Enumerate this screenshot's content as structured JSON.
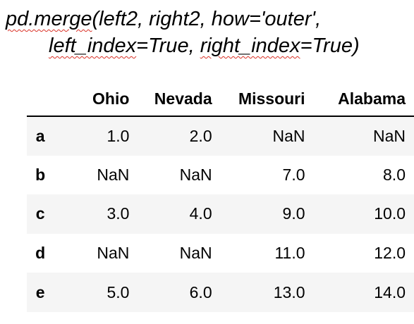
{
  "code": {
    "line1": {
      "func": "pd.merge",
      "args": "(left2, right2, how='outer',"
    },
    "line2": {
      "left_index": "left_index",
      "eq_true_sep": "=True, ",
      "right_index": "right_index",
      "tail": "=True)"
    }
  },
  "table": {
    "columns": [
      "Ohio",
      "Nevada",
      "Missouri",
      "Alabama"
    ],
    "rows": [
      {
        "index": "a",
        "values": [
          "1.0",
          "2.0",
          "NaN",
          "NaN"
        ]
      },
      {
        "index": "b",
        "values": [
          "NaN",
          "NaN",
          "7.0",
          "8.0"
        ]
      },
      {
        "index": "c",
        "values": [
          "3.0",
          "4.0",
          "9.0",
          "10.0"
        ]
      },
      {
        "index": "d",
        "values": [
          "NaN",
          "NaN",
          "11.0",
          "12.0"
        ]
      },
      {
        "index": "e",
        "values": [
          "5.0",
          "6.0",
          "13.0",
          "14.0"
        ]
      }
    ]
  }
}
